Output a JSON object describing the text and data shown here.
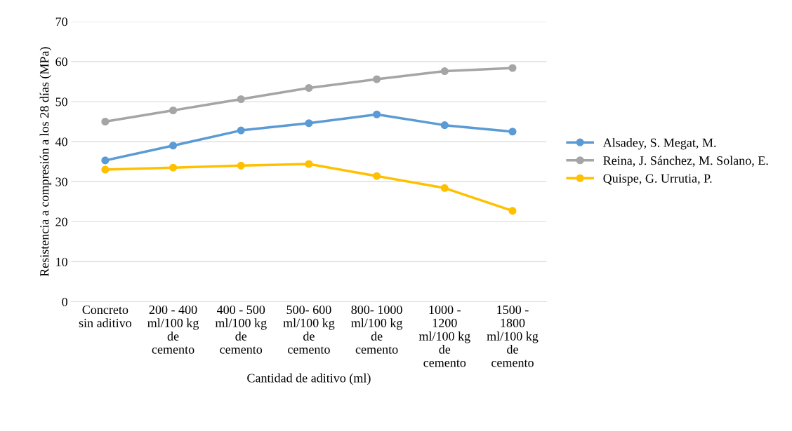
{
  "chart_data": {
    "type": "line",
    "xlabel": "Cantidad de aditivo (ml)",
    "ylabel": "Resistencia a compresión a los 28 días (MPa)",
    "categories": [
      "Concreto\nsin aditivo",
      "200 - 400\nml/100 kg\nde\ncemento",
      "400 - 500\nml/100 kg\nde\ncemento",
      "500- 600\nml/100 kg\nde\ncemento",
      "800- 1000\nml/100 kg\nde\ncemento",
      "1000 -\n1200\nml/100 kg\nde\ncemento",
      "1500 -\n1800\nml/100 kg\nde\ncemento"
    ],
    "series": [
      {
        "name": "Alsadey, S. Megat, M.",
        "color": "#5b9bd5",
        "values": [
          35.3,
          39.0,
          42.8,
          44.6,
          46.8,
          44.1,
          42.5
        ]
      },
      {
        "name": "Reina, J. Sánchez, M. Solano, E.",
        "color": "#a5a5a5",
        "values": [
          45.0,
          47.8,
          50.6,
          53.4,
          55.6,
          57.6,
          58.4
        ]
      },
      {
        "name": "Quispe, G. Urrutia, P.",
        "color": "#ffc000",
        "values": [
          33.0,
          33.5,
          34.0,
          34.4,
          31.4,
          28.4,
          22.7
        ]
      }
    ],
    "ylim": [
      0,
      70
    ],
    "yticks": [
      0,
      10,
      20,
      30,
      40,
      50,
      60,
      70
    ],
    "grid": "y",
    "legend": "right",
    "marker": "circle"
  }
}
